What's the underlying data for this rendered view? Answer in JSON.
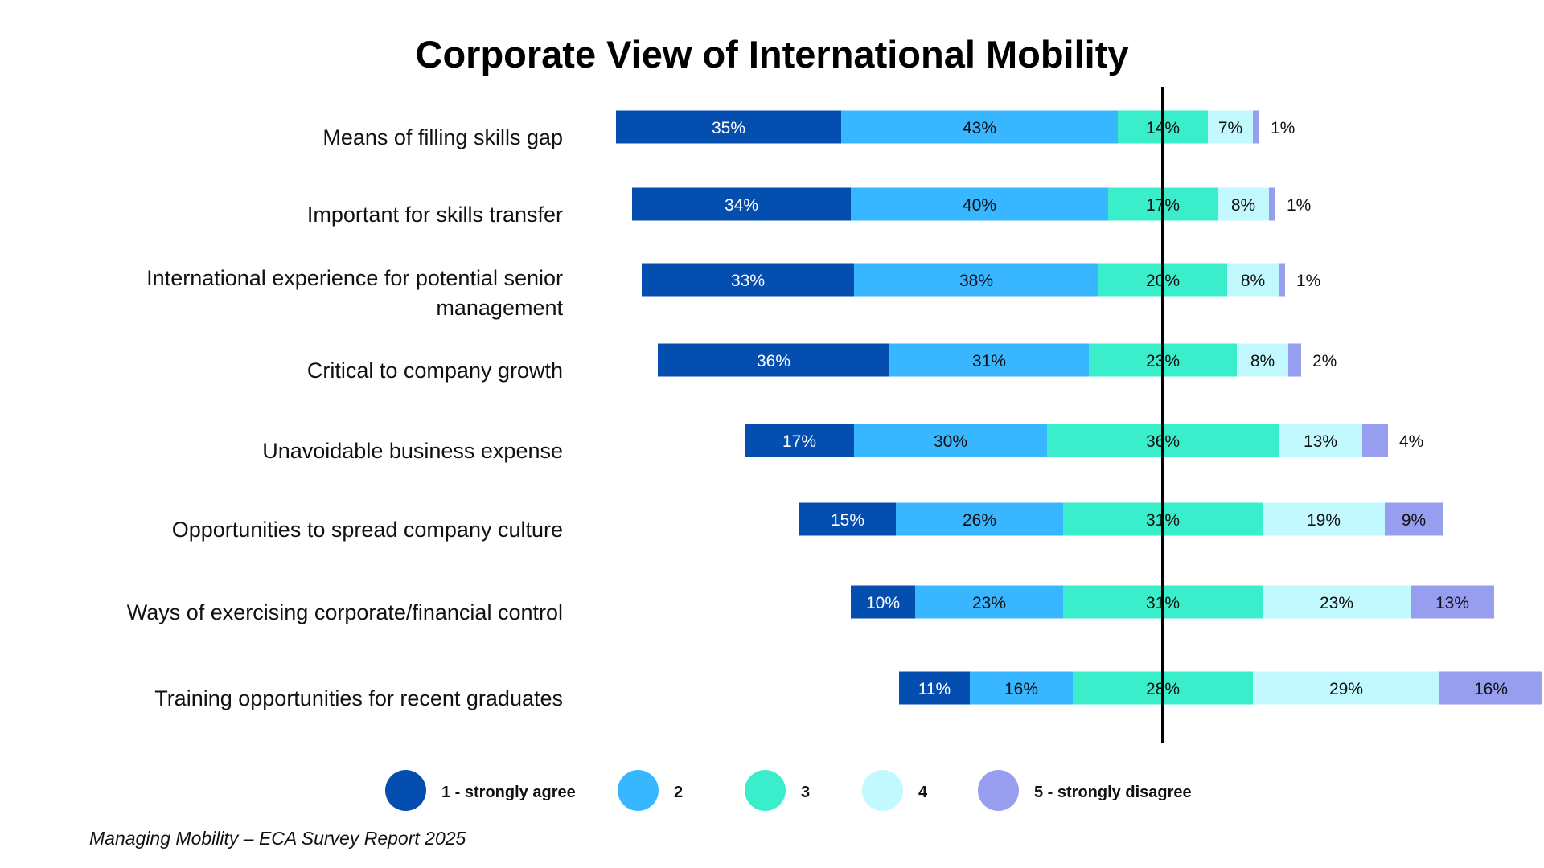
{
  "chart_data": {
    "type": "bar",
    "orientation": "horizontal-stacked-diverging",
    "title": "Corporate View of International Mobility",
    "categories": [
      "Means of filling skills gap",
      "Important for skills transfer",
      "International experience for potential senior management",
      "Critical to company growth",
      "Unavoidable business expense",
      "Opportunities to spread company culture",
      "Ways of exercising corporate/financial control",
      "Training opportunities for recent graduates"
    ],
    "series": [
      {
        "name": "1 - strongly agree",
        "color": "#034EAF",
        "values": [
          35,
          34,
          33,
          36,
          17,
          15,
          10,
          11
        ]
      },
      {
        "name": "2",
        "color": "#38B6FF",
        "values": [
          43,
          40,
          38,
          31,
          30,
          26,
          23,
          16
        ]
      },
      {
        "name": "3",
        "color": "#3AEDCB",
        "values": [
          14,
          17,
          20,
          23,
          36,
          31,
          31,
          28
        ]
      },
      {
        "name": "4",
        "color": "#C1F9FF",
        "values": [
          7,
          8,
          8,
          8,
          13,
          19,
          23,
          29
        ]
      },
      {
        "name": "5 - strongly disagree",
        "color": "#979EEF",
        "values": [
          1,
          1,
          1,
          2,
          4,
          9,
          13,
          16
        ]
      }
    ],
    "value_suffix": "%",
    "legend_position": "bottom",
    "grid": false,
    "center_line": true
  },
  "source_note": "Managing Mobility – ECA Survey Report 2025"
}
